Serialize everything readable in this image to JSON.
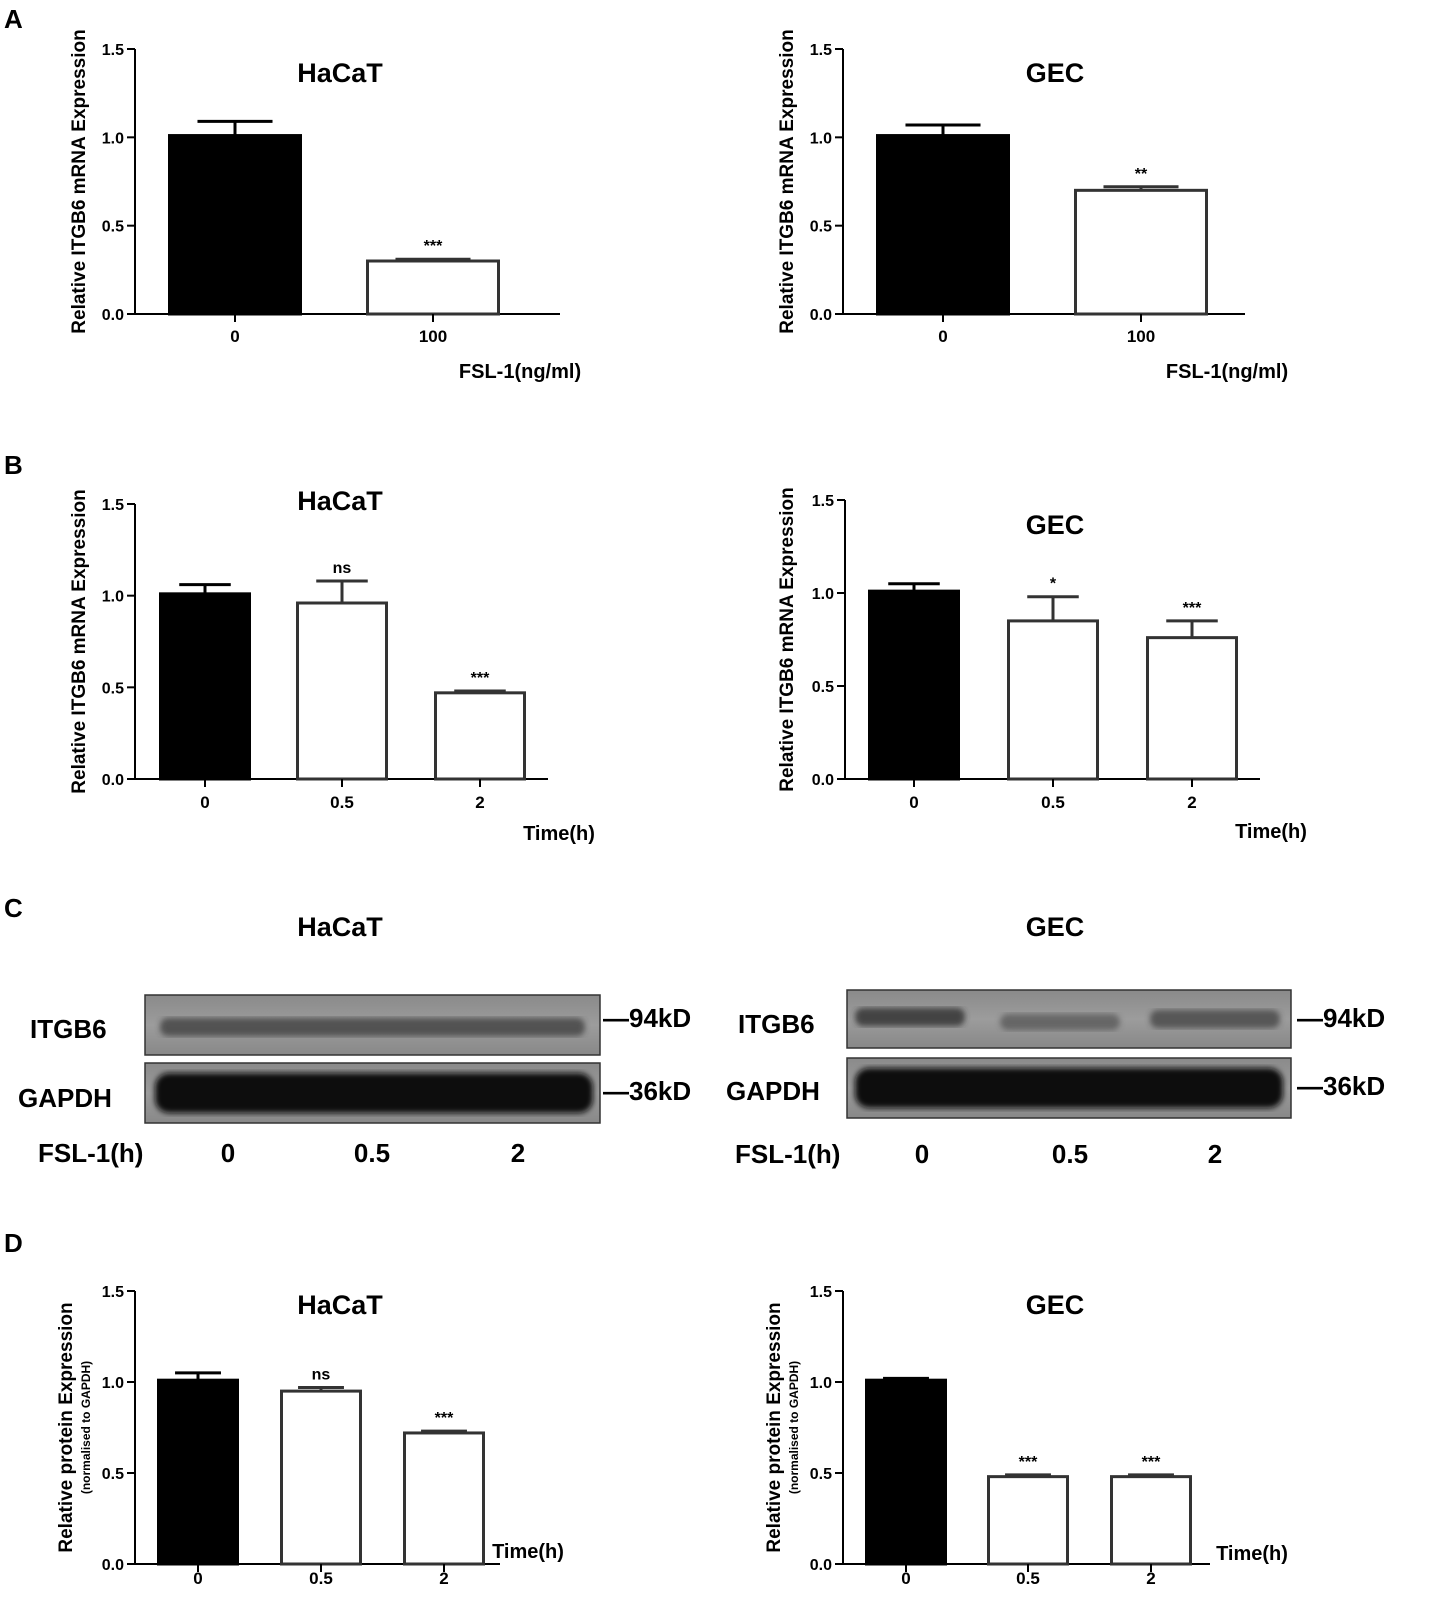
{
  "panel_letters": [
    "A",
    "B",
    "C",
    "D"
  ],
  "chart_data": [
    {
      "type": "bar",
      "panel": "A",
      "title": "HaCaT",
      "ylabel": "Relative ITGB6 mRNA Expression",
      "ylabel_sub": "",
      "xlabel": "FSL-1(ng/ml)",
      "categories": [
        "0",
        "100"
      ],
      "values": [
        1.01,
        0.3
      ],
      "errors": [
        0.08,
        0.01
      ],
      "significance": [
        "",
        "***"
      ],
      "fills": [
        "#000000",
        "#ffffff"
      ],
      "ylim": [
        0,
        1.5
      ],
      "yticks": [
        "0.0",
        "0.5",
        "1.0",
        "1.5"
      ],
      "grid": false
    },
    {
      "type": "bar",
      "panel": "A",
      "title": "GEC",
      "ylabel": "Relative ITGB6 mRNA Expression",
      "ylabel_sub": "",
      "xlabel": "FSL-1(ng/ml)",
      "categories": [
        "0",
        "100"
      ],
      "values": [
        1.01,
        0.7
      ],
      "errors": [
        0.06,
        0.02
      ],
      "significance": [
        "",
        "**"
      ],
      "fills": [
        "#000000",
        "#ffffff"
      ],
      "ylim": [
        0,
        1.5
      ],
      "yticks": [
        "0.0",
        "0.5",
        "1.0",
        "1.5"
      ],
      "grid": false
    },
    {
      "type": "bar",
      "panel": "B",
      "title": "HaCaT",
      "ylabel": "Relative ITGB6 mRNA Expression",
      "ylabel_sub": "",
      "xlabel": "Time(h)",
      "categories": [
        "0",
        "0.5",
        "2"
      ],
      "values": [
        1.01,
        0.96,
        0.47
      ],
      "errors": [
        0.05,
        0.12,
        0.01
      ],
      "significance": [
        "",
        "ns",
        "***"
      ],
      "fills": [
        "#000000",
        "#ffffff",
        "#ffffff"
      ],
      "ylim": [
        0,
        1.5
      ],
      "yticks": [
        "0.0",
        "0.5",
        "1.0",
        "1.5"
      ],
      "grid": false
    },
    {
      "type": "bar",
      "panel": "B",
      "title": "GEC",
      "ylabel": "Relative ITGB6 mRNA Expression",
      "ylabel_sub": "",
      "xlabel": "Time(h)",
      "categories": [
        "0",
        "0.5",
        "2"
      ],
      "values": [
        1.01,
        0.85,
        0.76
      ],
      "errors": [
        0.04,
        0.13,
        0.09
      ],
      "significance": [
        "",
        "*",
        "***"
      ],
      "fills": [
        "#000000",
        "#ffffff",
        "#ffffff"
      ],
      "ylim": [
        0,
        1.5
      ],
      "yticks": [
        "0.0",
        "0.5",
        "1.0",
        "1.5"
      ],
      "grid": false
    },
    {
      "type": "bar",
      "panel": "D",
      "title": "HaCaT",
      "ylabel": "Relative  protein Expression",
      "ylabel_sub": "(normalised to GAPDH)",
      "xlabel": "Time(h)",
      "categories": [
        "0",
        "0.5",
        "2"
      ],
      "values": [
        1.01,
        0.95,
        0.72
      ],
      "errors": [
        0.04,
        0.02,
        0.01
      ],
      "significance": [
        "",
        "ns",
        "***"
      ],
      "fills": [
        "#000000",
        "#ffffff",
        "#ffffff"
      ],
      "ylim": [
        0,
        1.5
      ],
      "yticks": [
        "0.0",
        "0.5",
        "1.0",
        "1.5"
      ],
      "grid": false
    },
    {
      "type": "bar",
      "panel": "D",
      "title": "GEC",
      "ylabel": "Relative protein Expression",
      "ylabel_sub": "(normalised to GAPDH)",
      "xlabel": "Time(h)",
      "categories": [
        "0",
        "0.5",
        "2"
      ],
      "values": [
        1.01,
        0.48,
        0.48
      ],
      "errors": [
        0.01,
        0.01,
        0.01
      ],
      "significance": [
        "",
        "***",
        "***"
      ],
      "fills": [
        "#000000",
        "#ffffff",
        "#ffffff"
      ],
      "ylim": [
        0,
        1.5
      ],
      "yticks": [
        "0.0",
        "0.5",
        "1.0",
        "1.5"
      ],
      "grid": false
    }
  ],
  "blots": [
    {
      "title": "HaCaT",
      "rows": [
        {
          "label": "ITGB6",
          "marker": "—94kD"
        },
        {
          "label": "GAPDH",
          "marker": "—36kD"
        }
      ],
      "treatment_label": "FSL-1(h)",
      "lanes": [
        "0",
        "0.5",
        "2"
      ]
    },
    {
      "title": "GEC",
      "rows": [
        {
          "label": "ITGB6",
          "marker": "—94kD"
        },
        {
          "label": "GAPDH",
          "marker": "—36kD"
        }
      ],
      "treatment_label": "FSL-1(h)",
      "lanes": [
        "0",
        "0.5",
        "2"
      ]
    }
  ]
}
